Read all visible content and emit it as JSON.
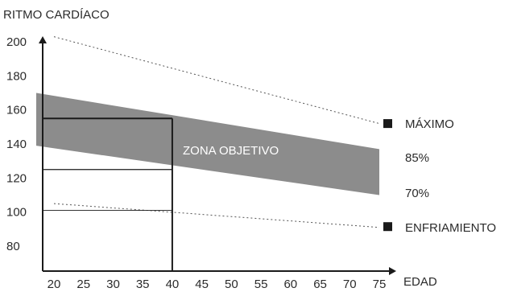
{
  "chart_data": {
    "type": "line",
    "title": "",
    "ylabel": "RITMO CARDÍACO",
    "xlabel": "EDAD",
    "x": [
      20,
      25,
      30,
      35,
      40,
      45,
      50,
      55,
      60,
      65,
      70,
      75
    ],
    "y_ticks": [
      80,
      100,
      120,
      140,
      160,
      180,
      200
    ],
    "xlim": [
      17,
      82
    ],
    "ylim": [
      62,
      215
    ],
    "grid": false,
    "series": [
      {
        "name": "MÁXIMO",
        "style": "dotted",
        "points": [
          [
            20,
            203
          ],
          [
            75,
            152
          ]
        ]
      },
      {
        "name": "ENFRIAMIENTO",
        "style": "dotted",
        "points": [
          [
            20,
            105
          ],
          [
            75,
            91
          ]
        ]
      },
      {
        "name": "85%",
        "role": "band-upper",
        "points": [
          [
            17,
            170
          ],
          [
            75,
            137
          ]
        ]
      },
      {
        "name": "70%",
        "role": "band-lower",
        "points": [
          [
            17,
            139
          ],
          [
            75,
            110
          ]
        ]
      }
    ],
    "band": {
      "label": "ZONA OBJETIVO",
      "color": "#8c8c8c"
    },
    "guides": [
      {
        "x": 40,
        "y": 155
      },
      {
        "x": 40,
        "y": 125
      },
      {
        "x": 40,
        "y": 101
      }
    ],
    "legend_items": [
      "MÁXIMO",
      "85%",
      "70%",
      "ENFRIAMIENTO"
    ]
  }
}
